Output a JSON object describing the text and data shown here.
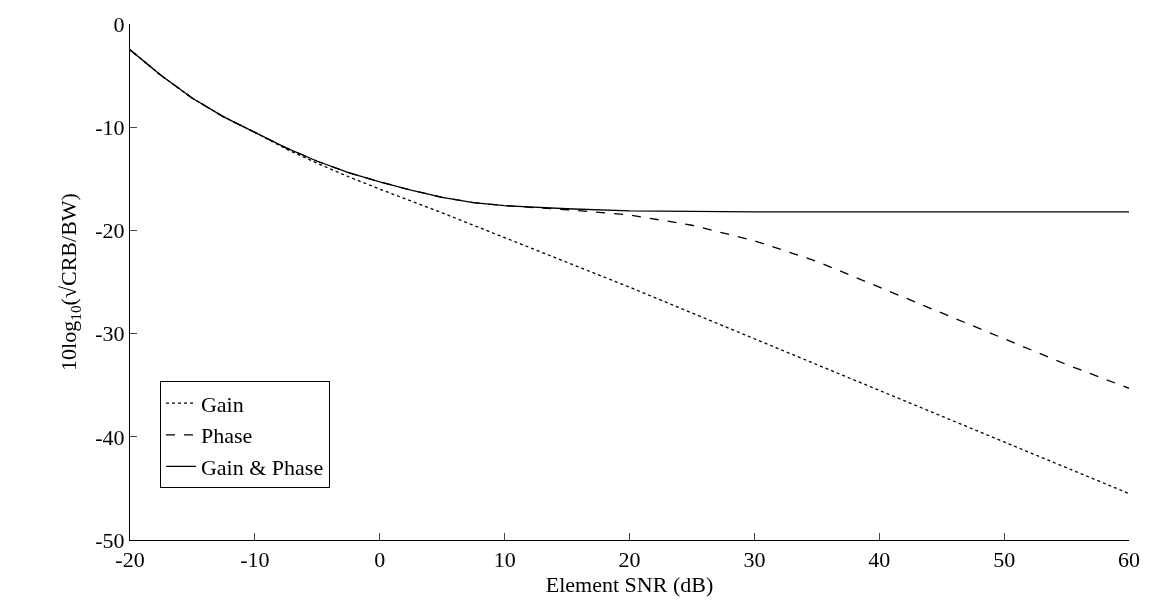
{
  "chart_data": {
    "type": "line",
    "xlabel": "Element SNR (dB)",
    "ylabel": "10log$_{10}$(√CRB/BW)",
    "xlim": [
      -20,
      60
    ],
    "xticks": [
      -20,
      -10,
      0,
      10,
      20,
      30,
      40,
      50,
      60
    ],
    "ylim": [
      -50,
      0
    ],
    "yticks": [
      -50,
      -40,
      -30,
      -20,
      -10,
      0
    ],
    "grid": false,
    "legend": "bottom left",
    "marker": "none",
    "series": [
      {
        "name": "Gain",
        "color": "#000000",
        "line_style": "dotted",
        "x": [
          -20,
          -17.5,
          -15,
          -12.5,
          -10,
          -7.5,
          -5,
          -2.5,
          0,
          5,
          10,
          20,
          30,
          40,
          50,
          60
        ],
        "values": [
          -2.5,
          -5,
          -7.2,
          -9,
          -10.5,
          -12.1,
          -13.5,
          -14.8,
          -16,
          -18.3,
          -20.7,
          -25.5,
          -30.5,
          -35.5,
          -40.5,
          -45.5
        ]
      },
      {
        "name": "Phase",
        "color": "#000000",
        "line_style": "dashed",
        "x": [
          -20,
          -17.5,
          -15,
          -12.5,
          -10,
          -7.5,
          -5,
          -2.5,
          0,
          2.5,
          5,
          7.5,
          10,
          15,
          20,
          25,
          30,
          35,
          40,
          45,
          50,
          55,
          60
        ],
        "values": [
          -2.5,
          -5,
          -7.2,
          -9,
          -10.5,
          -12,
          -13.3,
          -14.4,
          -15.3,
          -16.1,
          -16.8,
          -17.3,
          -17.6,
          -18,
          -18.5,
          -19.5,
          -21,
          -23,
          -25.5,
          -28,
          -30.5,
          -33,
          -35.3
        ]
      },
      {
        "name": "Gain & Phase",
        "color": "#000000",
        "line_style": "solid",
        "x": [
          -20,
          -17.5,
          -15,
          -12.5,
          -10,
          -7.5,
          -5,
          -2.5,
          0,
          2.5,
          5,
          7.5,
          10,
          15,
          20,
          30,
          40,
          60
        ],
        "values": [
          -2.5,
          -5,
          -7.2,
          -9,
          -10.5,
          -12,
          -13.3,
          -14.4,
          -15.3,
          -16.1,
          -16.8,
          -17.3,
          -17.6,
          -17.9,
          -18.1,
          -18.2,
          -18.2,
          -18.2
        ]
      }
    ]
  }
}
